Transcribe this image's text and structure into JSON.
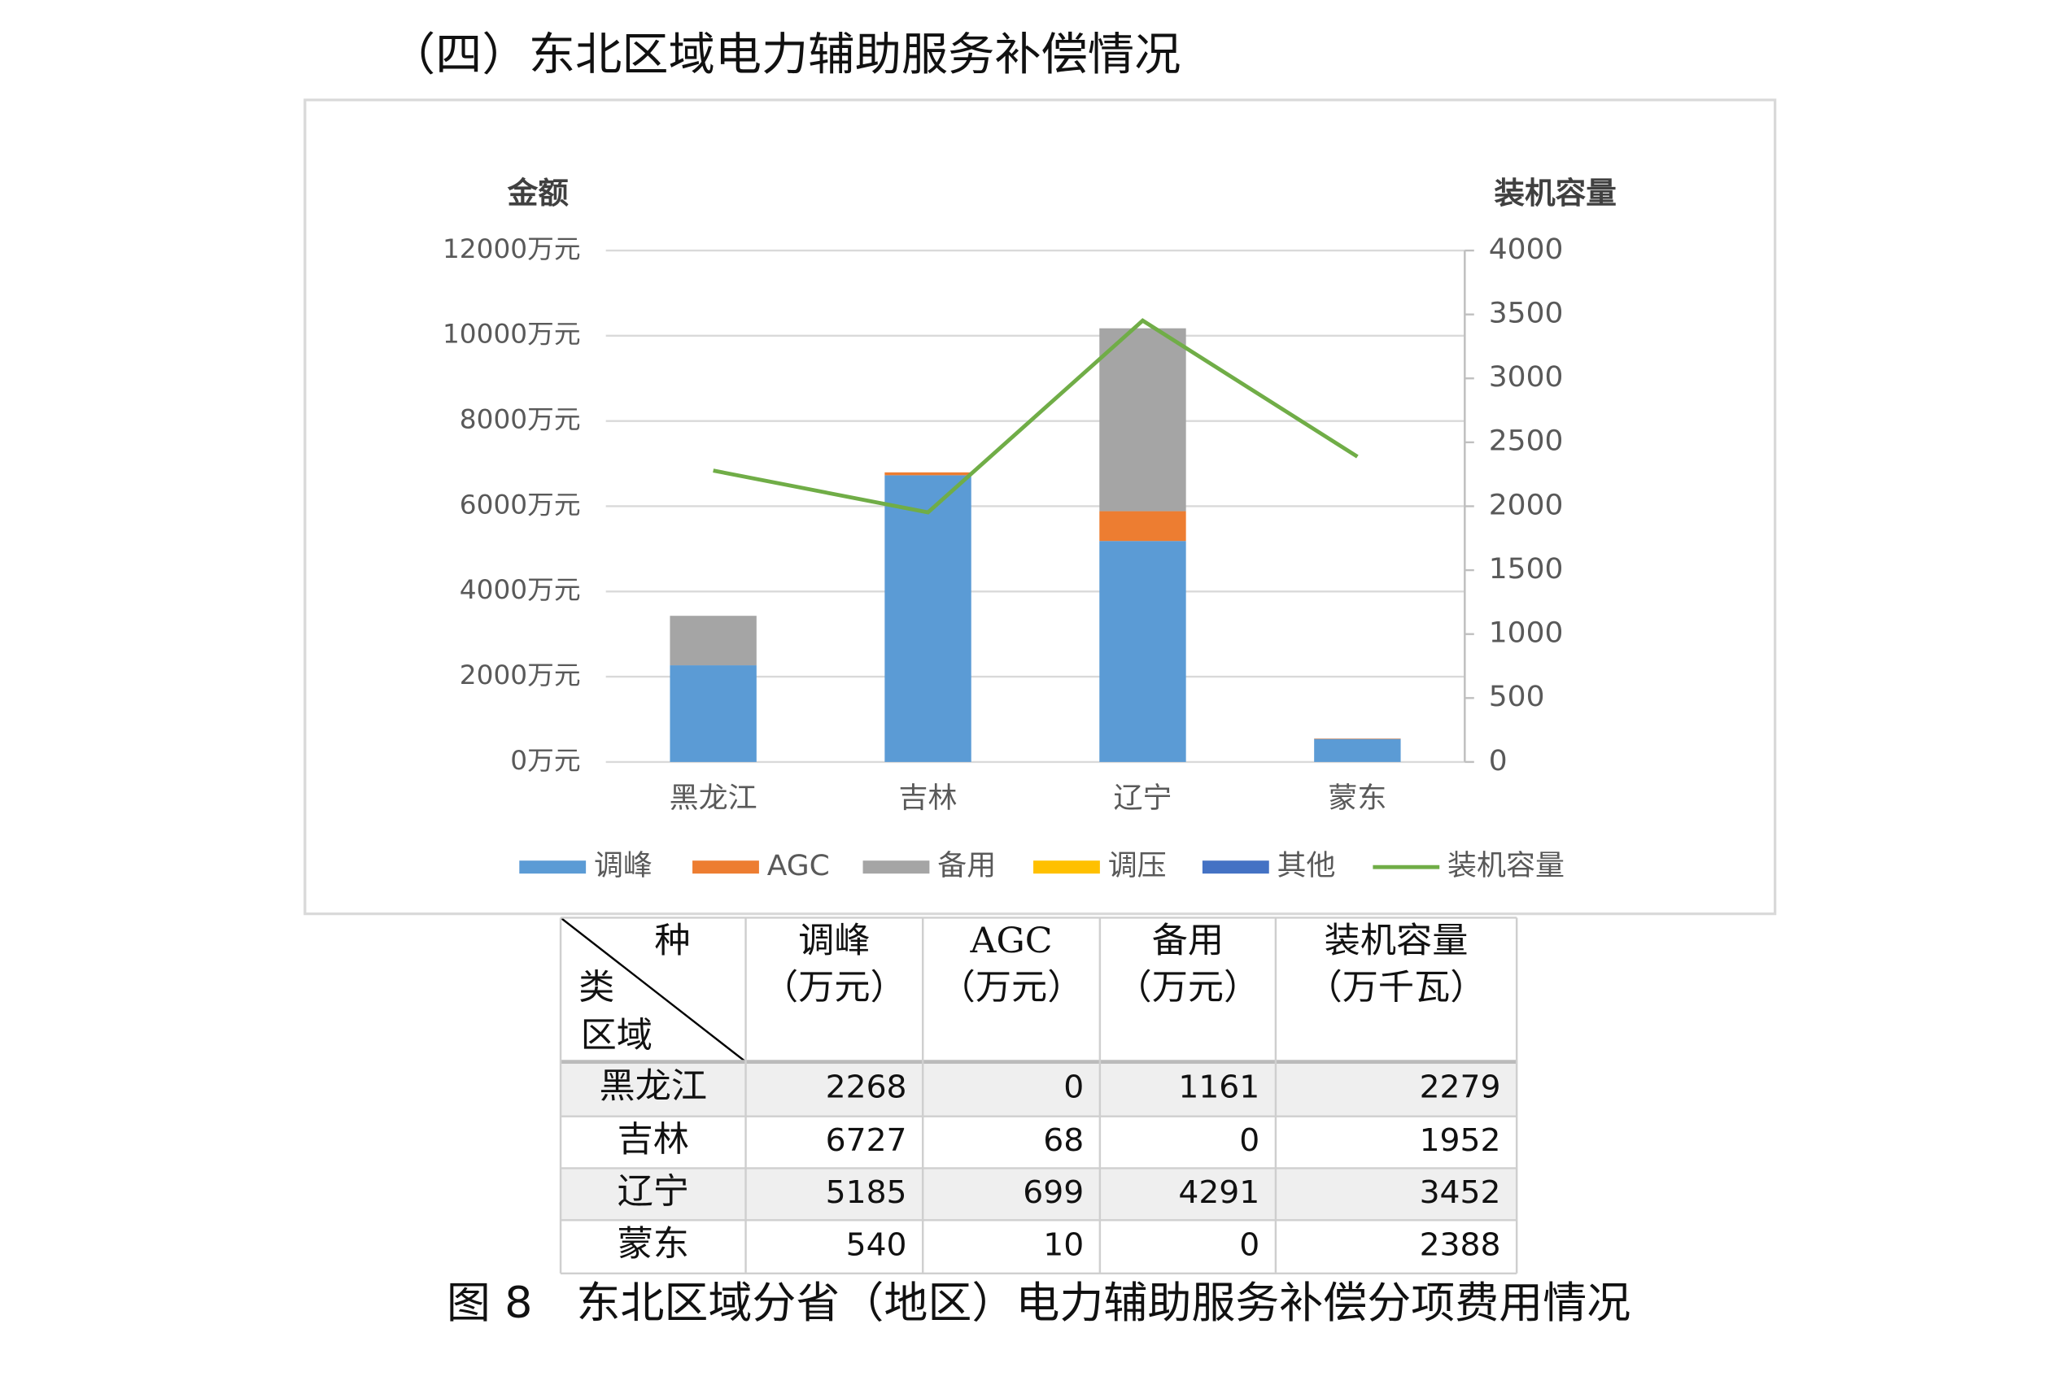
{
  "heading": "（四）东北区域电力辅助服务补偿情况",
  "chart_data": {
    "type": "stacked-bar-line",
    "y_title": "金额",
    "y2_title": "装机容量",
    "categories": [
      "黑龙江",
      "吉林",
      "辽宁",
      "蒙东"
    ],
    "series": [
      {
        "name": "调峰",
        "color": "#5b9bd5",
        "values": [
          2268,
          6727,
          5185,
          540
        ]
      },
      {
        "name": "AGC",
        "color": "#ed7d31",
        "values": [
          0,
          68,
          699,
          10
        ]
      },
      {
        "name": "备用",
        "color": "#a5a5a5",
        "values": [
          1161,
          0,
          4291,
          0
        ]
      },
      {
        "name": "调压",
        "color": "#ffc000",
        "values": [
          0,
          0,
          0,
          0
        ]
      },
      {
        "name": "其他",
        "color": "#4472c4",
        "values": [
          0,
          0,
          0,
          0
        ]
      },
      {
        "name": "装机容量",
        "color": "#70ad47",
        "axis": "y2",
        "values": [
          2279,
          1952,
          3452,
          2388
        ]
      }
    ],
    "ylim": [
      0,
      12000
    ],
    "yticks": [
      {
        "value": 0,
        "label": "0万元"
      },
      {
        "value": 2000,
        "label": "2000万元"
      },
      {
        "value": 4000,
        "label": "4000万元"
      },
      {
        "value": 6000,
        "label": "6000万元"
      },
      {
        "value": 8000,
        "label": "8000万元"
      },
      {
        "value": 10000,
        "label": "10000万元"
      },
      {
        "value": 12000,
        "label": "12000万元"
      }
    ],
    "y2lim": [
      0,
      4000
    ],
    "y2ticks": [
      0,
      500,
      1000,
      1500,
      2000,
      2500,
      3000,
      3500,
      4000
    ],
    "grid": true,
    "legend": "bottom"
  },
  "table": {
    "corner": [
      "种",
      "类",
      "区域"
    ],
    "columns": [
      [
        "调峰",
        "（万元）"
      ],
      [
        "AGC",
        "（万元）"
      ],
      [
        "备用",
        "（万元）"
      ],
      [
        "装机容量",
        "（万千瓦）"
      ]
    ],
    "rows": [
      [
        "黑龙江",
        2268,
        0,
        1161,
        2279
      ],
      [
        "吉林",
        6727,
        68,
        0,
        1952
      ],
      [
        "辽宁",
        5185,
        699,
        4291,
        3452
      ],
      [
        "蒙东",
        540,
        10,
        0,
        2388
      ]
    ]
  },
  "caption": "图 8　东北区域分省（地区）电力辅助服务补偿分项费用情况"
}
